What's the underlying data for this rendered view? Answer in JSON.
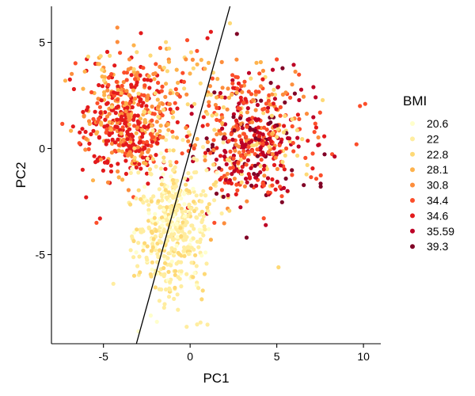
{
  "chart_data": {
    "type": "scatter",
    "title": "",
    "xlabel": "PC1",
    "ylabel": "PC2",
    "xlim": [
      -8,
      11
    ],
    "ylim": [
      -9.2,
      6.7
    ],
    "x_ticks": [
      -5,
      0,
      5,
      10
    ],
    "x_tick_labels": [
      "-5",
      "0",
      "5",
      "10"
    ],
    "y_ticks": [
      -5,
      0,
      5
    ],
    "y_tick_labels": [
      "-5",
      "0",
      "5"
    ],
    "grid": false,
    "legend": {
      "title": "BMI",
      "position": "right",
      "entries": [
        {
          "label": "20.6",
          "color": "#ffffcc"
        },
        {
          "label": "22",
          "color": "#ffeda0"
        },
        {
          "label": "22.8",
          "color": "#fed976"
        },
        {
          "label": "28.1",
          "color": "#feb24c"
        },
        {
          "label": "30.8",
          "color": "#fd8d3c"
        },
        {
          "label": "34.4",
          "color": "#fc4e2a"
        },
        {
          "label": "34.6",
          "color": "#e31a1c"
        },
        {
          "label": "35.59",
          "color": "#bd0026"
        },
        {
          "label": "39.3",
          "color": "#800026"
        }
      ]
    },
    "reference_line": {
      "from": [
        -3.1,
        -9.2
      ],
      "to": [
        2.3,
        6.7
      ]
    },
    "clusters": [
      {
        "name": "upper-left",
        "center": [
          -3.6,
          1.2
        ],
        "spread": [
          1.3,
          1.3
        ],
        "count": 450,
        "colors": [
          "#e31a1c",
          "#e31a1c",
          "#e31a1c",
          "#fd8d3c",
          "#feb24c",
          "#fc4e2a"
        ]
      },
      {
        "name": "right",
        "center": [
          3.6,
          0.4
        ],
        "spread": [
          1.7,
          1.4
        ],
        "count": 520,
        "colors": [
          "#bd0026",
          "#bd0026",
          "#fc4e2a",
          "#fc4e2a",
          "#e31a1c",
          "#800026",
          "#fd8d3c",
          "#fed976"
        ]
      },
      {
        "name": "lower-center",
        "center": [
          -1.1,
          -3.6
        ],
        "spread": [
          1.1,
          1.7
        ],
        "count": 470,
        "colors": [
          "#ffeda0",
          "#ffeda0",
          "#ffeda0",
          "#fed976",
          "#ffffcc"
        ]
      },
      {
        "name": "orange-band",
        "center": [
          -1.5,
          2.8
        ],
        "spread": [
          2.6,
          1.3
        ],
        "count": 160,
        "colors": [
          "#fd8d3c",
          "#feb24c",
          "#fc4e2a",
          "#fed976"
        ]
      }
    ],
    "scattered_points": [
      {
        "x": -7.2,
        "y": 3.2,
        "color": "#feb24c"
      },
      {
        "x": -4.2,
        "y": 5.7,
        "color": "#fd8d3c"
      },
      {
        "x": 2.3,
        "y": 5.9,
        "color": "#fed976"
      },
      {
        "x": 2.7,
        "y": 5.4,
        "color": "#800026"
      },
      {
        "x": 1.2,
        "y": 5.5,
        "color": "#e31a1c"
      },
      {
        "x": 1.0,
        "y": 5.2,
        "color": "#e31a1c"
      },
      {
        "x": 0.4,
        "y": 4.6,
        "color": "#fc4e2a"
      },
      {
        "x": 10.1,
        "y": 2.1,
        "color": "#fc4e2a"
      },
      {
        "x": 9.8,
        "y": 2.0,
        "color": "#fc4e2a"
      },
      {
        "x": 9.6,
        "y": 0.2,
        "color": "#fc4e2a"
      },
      {
        "x": 5.0,
        "y": 4.2,
        "color": "#fc4e2a"
      },
      {
        "x": 5.1,
        "y": -5.6,
        "color": "#fed976"
      },
      {
        "x": -5.4,
        "y": -3.5,
        "color": "#fc4e2a"
      },
      {
        "x": -5.2,
        "y": -3.3,
        "color": "#e31a1c"
      },
      {
        "x": -6.0,
        "y": -2.3,
        "color": "#e31a1c"
      },
      {
        "x": -6.2,
        "y": -1.0,
        "color": "#e31a1c"
      },
      {
        "x": -5.6,
        "y": -1.5,
        "color": "#feb24c"
      },
      {
        "x": 1.4,
        "y": -3.5,
        "color": "#fc4e2a"
      },
      {
        "x": 1.2,
        "y": -4.3,
        "color": "#feb24c"
      },
      {
        "x": 1.0,
        "y": -8.3,
        "color": "#ffeda0"
      },
      {
        "x": 0.6,
        "y": -8.2,
        "color": "#ffeda0"
      },
      {
        "x": -0.2,
        "y": -8.4,
        "color": "#ffeda0"
      },
      {
        "x": -1.5,
        "y": -7.5,
        "color": "#ffeda0"
      }
    ]
  }
}
